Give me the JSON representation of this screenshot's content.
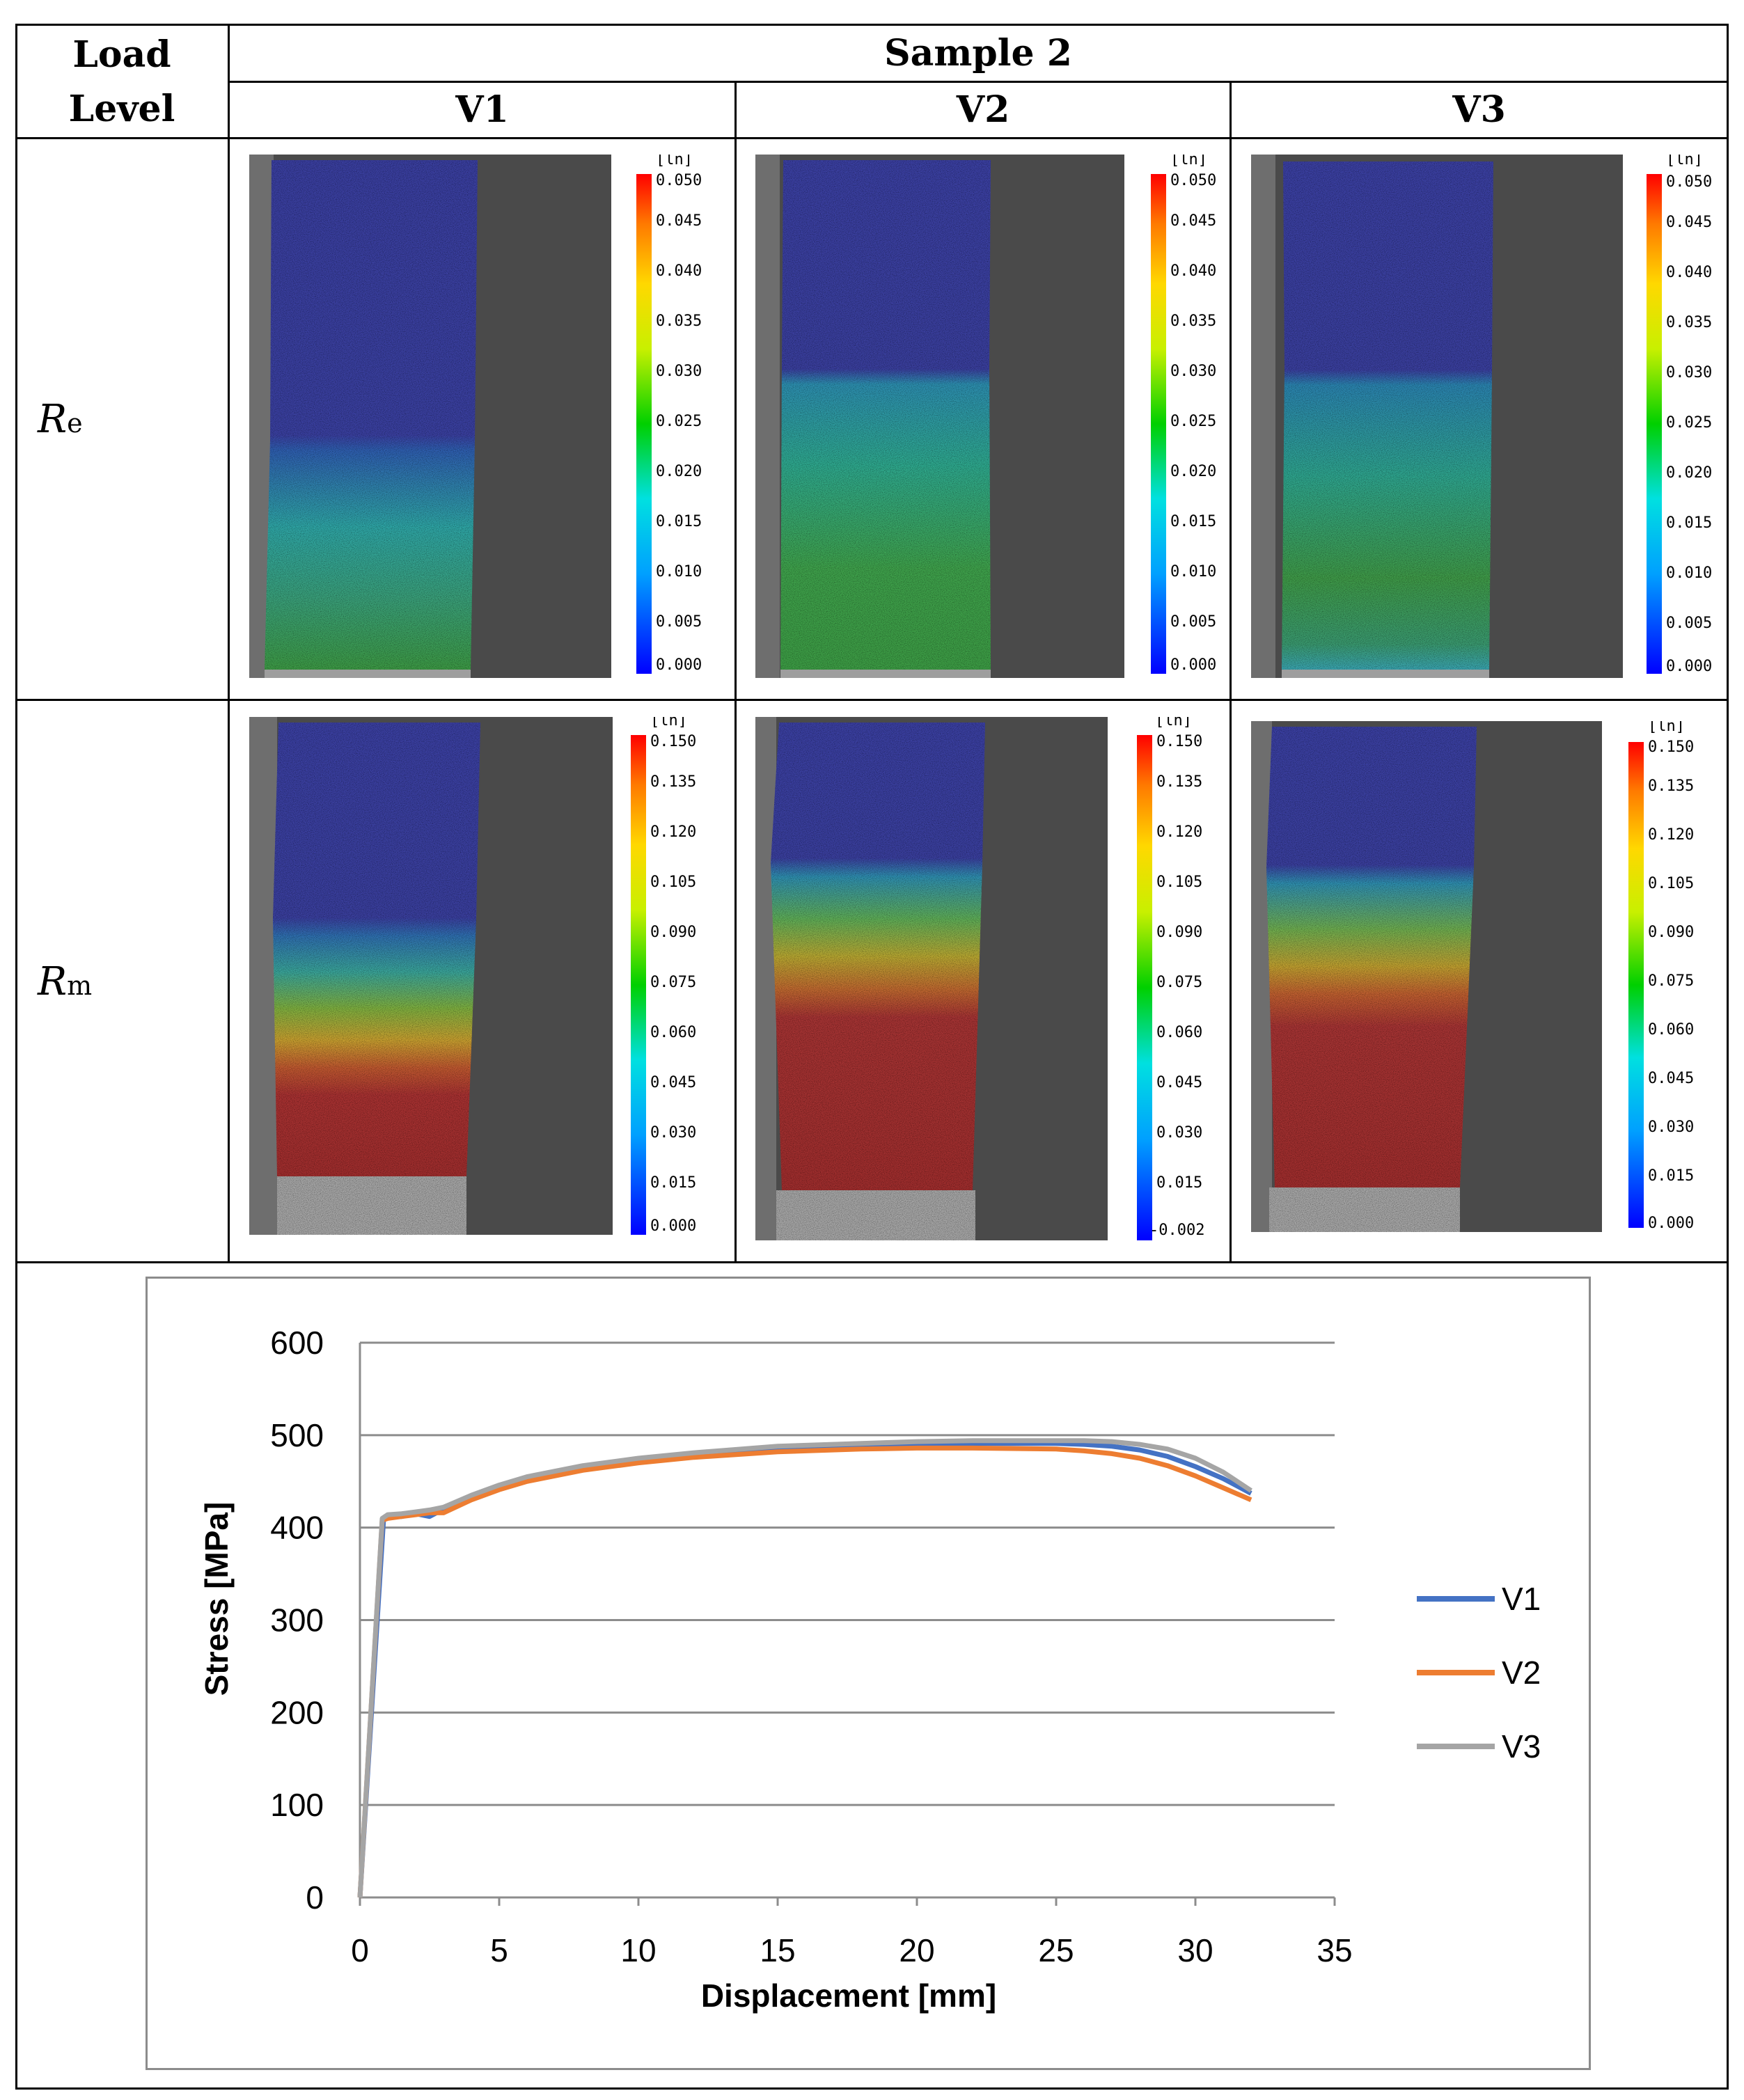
{
  "table": {
    "header_load": "Load Level",
    "header_sample": "Sample 2",
    "columns": [
      "V1",
      "V2",
      "V3"
    ],
    "rows": [
      {
        "label_main": "R",
        "label_sub": "e"
      },
      {
        "label_main": "R",
        "label_sub": "m"
      }
    ]
  },
  "strain_maps": {
    "unit": "[ln]",
    "re_scale": [
      "0.050",
      "0.045",
      "0.040",
      "0.035",
      "0.030",
      "0.025",
      "0.020",
      "0.015",
      "0.010",
      "0.005",
      "0.000"
    ],
    "rm_scale": [
      "0.150",
      "0.135",
      "0.120",
      "0.105",
      "0.090",
      "0.075",
      "0.060",
      "0.045",
      "0.030",
      "0.015",
      "0.000"
    ],
    "rm_scale_v2": [
      "0.150",
      "0.135",
      "0.120",
      "0.105",
      "0.090",
      "0.075",
      "0.060",
      "0.045",
      "0.030",
      "0.015",
      "-0.002"
    ]
  },
  "colors": {
    "V1": "#4472c4",
    "V2": "#ed7d31",
    "V3": "#a5a5a5",
    "gridline": "#8c8c8c",
    "background_plate": "#4a4a4a"
  },
  "chart_data": {
    "type": "line",
    "title": "",
    "xlabel": "Displacement [mm]",
    "ylabel": "Stress [MPa]",
    "xlim": [
      0,
      35
    ],
    "ylim": [
      0,
      600
    ],
    "xticks": [
      0,
      5,
      10,
      15,
      20,
      25,
      30,
      35
    ],
    "yticks": [
      0,
      100,
      200,
      300,
      400,
      500,
      600
    ],
    "grid": "horizontal",
    "legend": "right",
    "series": [
      {
        "name": "V1",
        "x": [
          0,
          0.85,
          1.0,
          1.5,
          2.0,
          2.5,
          3.0,
          4,
          5,
          6,
          8,
          10,
          12,
          15,
          18,
          20,
          22,
          25,
          26,
          27,
          28,
          29,
          30,
          31,
          32
        ],
        "y": [
          0,
          410,
          413,
          412,
          415,
          412,
          420,
          433,
          444,
          453,
          466,
          474,
          480,
          486,
          489,
          491,
          491,
          491,
          490,
          488,
          484,
          477,
          466,
          453,
          437
        ]
      },
      {
        "name": "V2",
        "x": [
          0,
          0.8,
          1.0,
          1.5,
          2.0,
          2.5,
          3.0,
          4,
          5,
          6,
          8,
          10,
          12,
          15,
          18,
          20,
          22,
          25,
          26,
          27,
          28,
          29,
          30,
          31,
          32
        ],
        "y": [
          0,
          408,
          410,
          412,
          414,
          416,
          416,
          430,
          441,
          450,
          462,
          470,
          476,
          482,
          485,
          486,
          486,
          485,
          483,
          480,
          475,
          467,
          456,
          443,
          430
        ]
      },
      {
        "name": "V3",
        "x": [
          0,
          0.8,
          1.0,
          1.5,
          2.0,
          2.5,
          3.0,
          4,
          5,
          6,
          8,
          10,
          12,
          15,
          18,
          20,
          22,
          25,
          26,
          27,
          28,
          29,
          30,
          31,
          32
        ],
        "y": [
          0,
          410,
          414,
          415,
          417,
          419,
          422,
          435,
          446,
          455,
          467,
          475,
          481,
          488,
          491,
          493,
          494,
          494,
          494,
          493,
          490,
          485,
          475,
          460,
          440
        ]
      }
    ]
  }
}
